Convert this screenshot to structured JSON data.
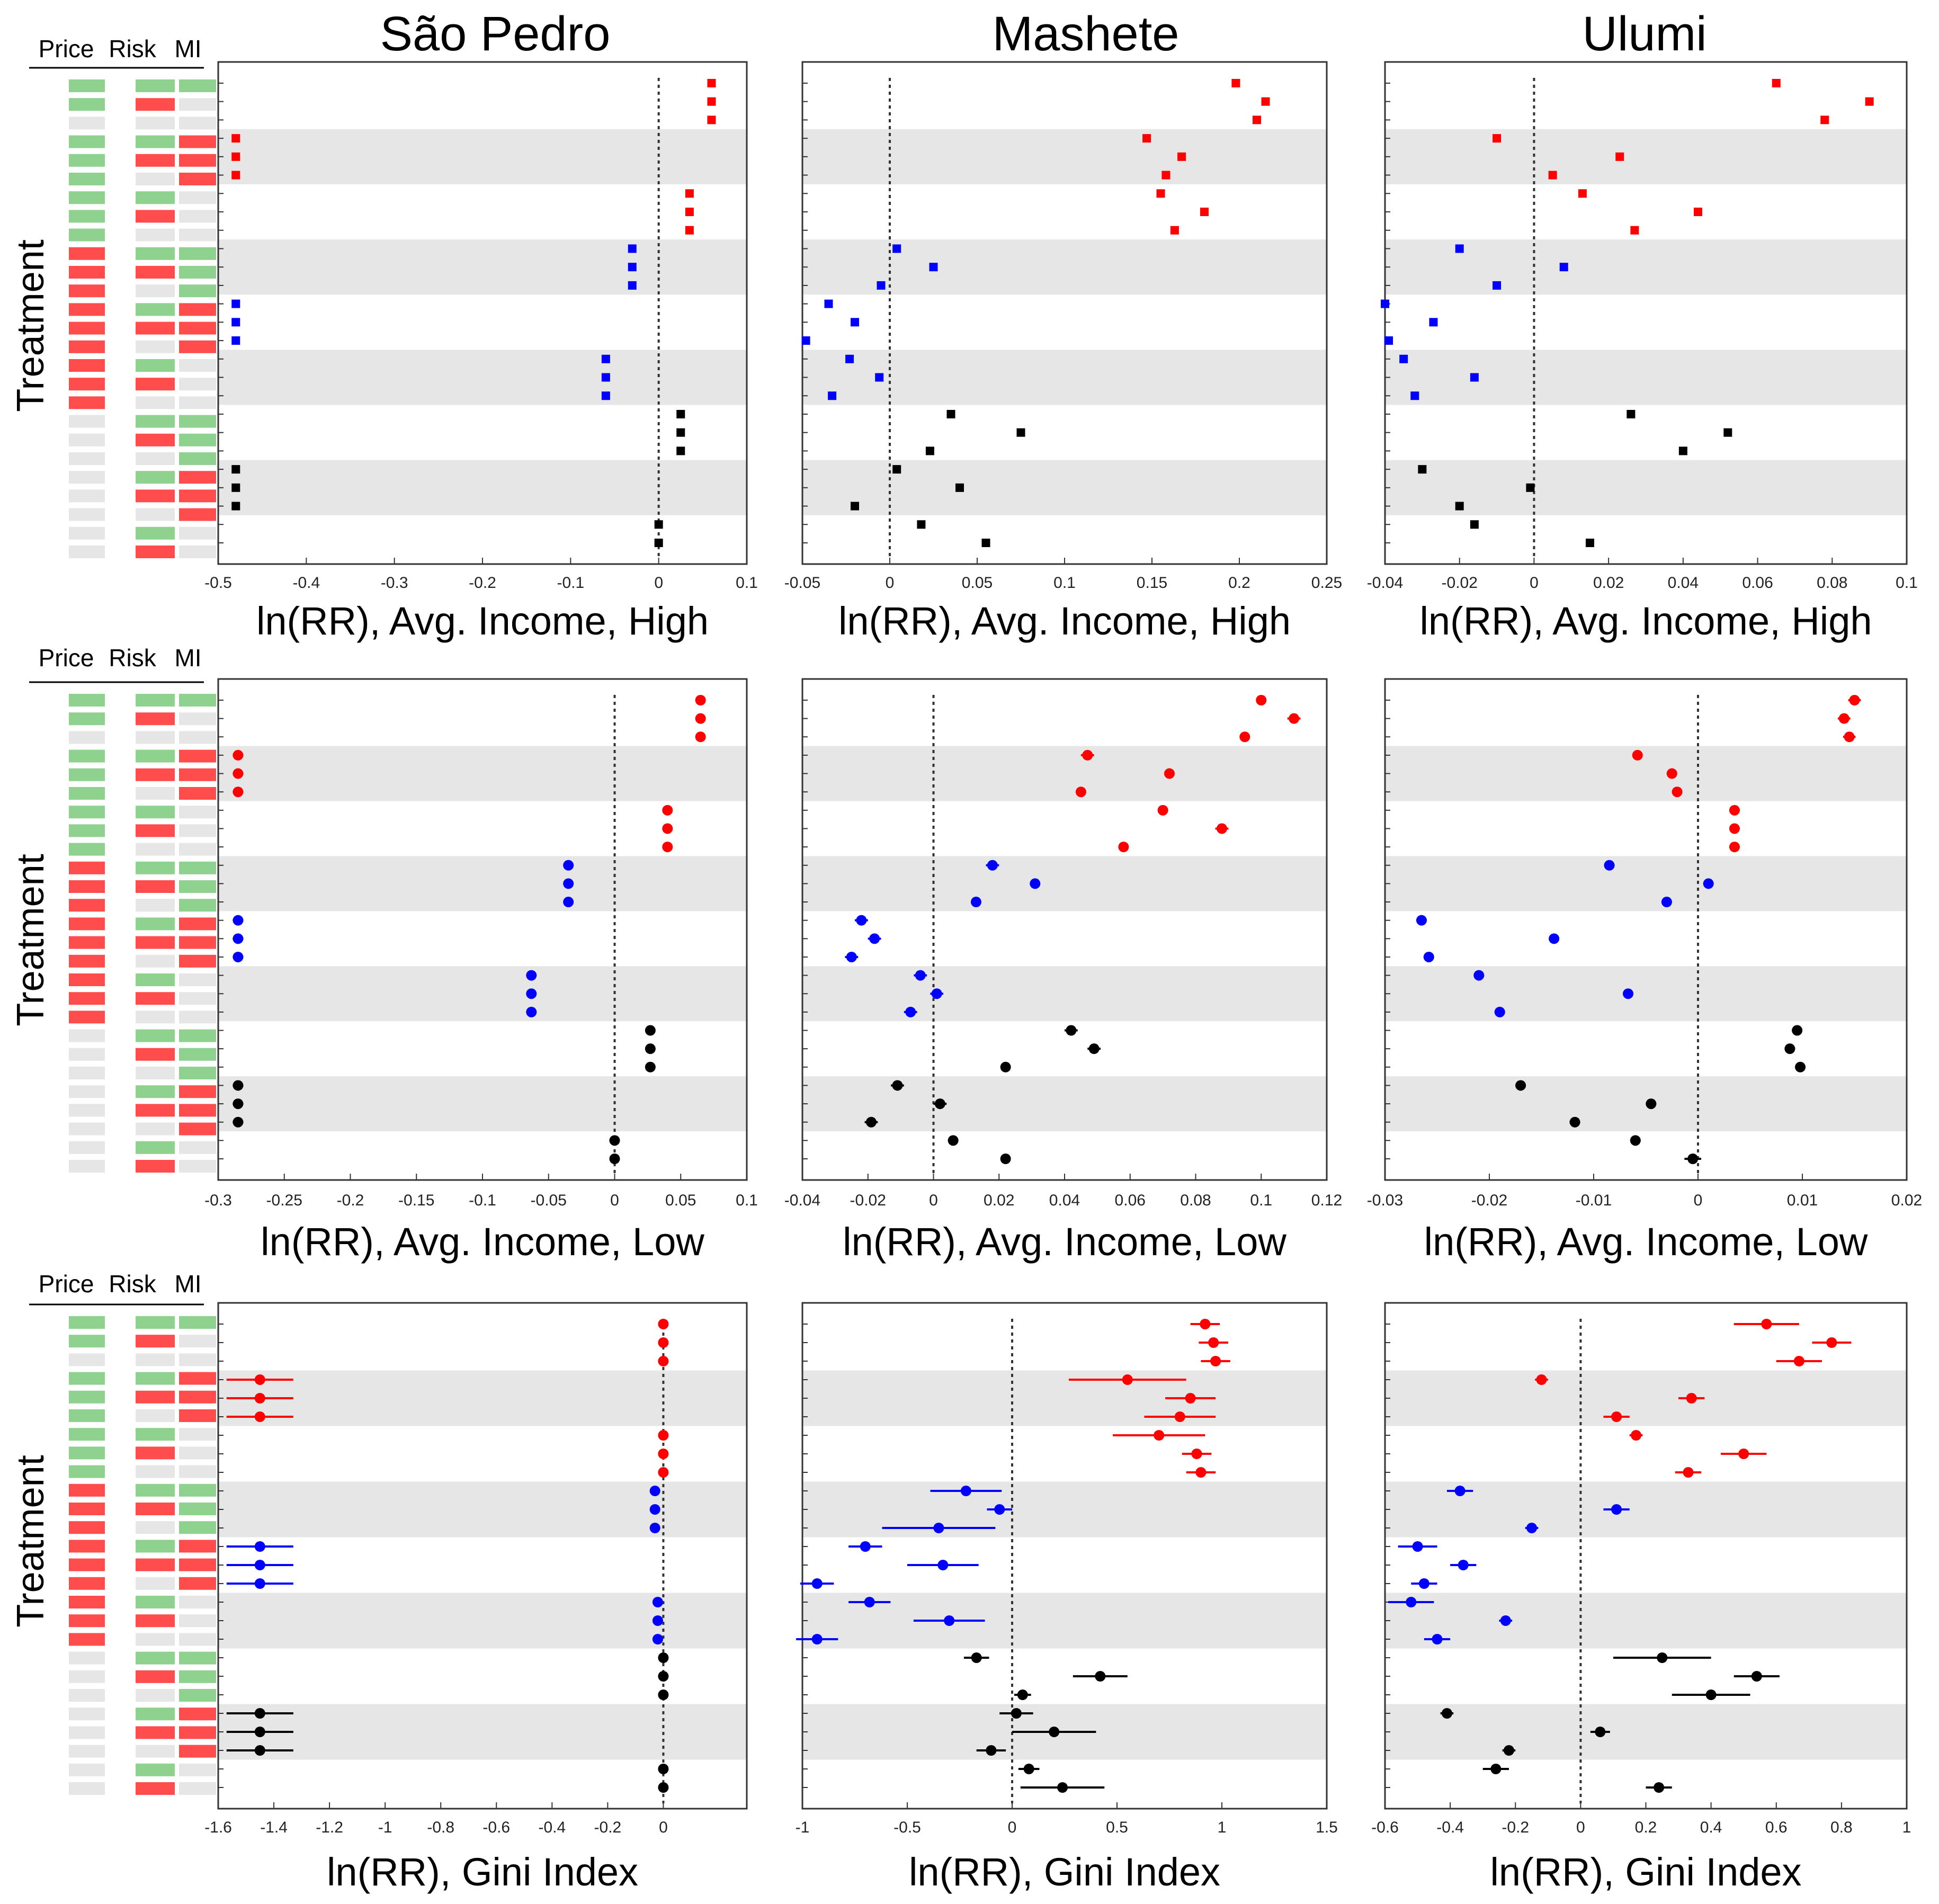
{
  "column_titles": [
    "São Pedro",
    "Mashete",
    "Ulumi"
  ],
  "treatment_label": "Treatment",
  "legend_header": [
    "Price",
    "Risk",
    "MI"
  ],
  "colors": {
    "price_risk_mi_group": "#ff0000",
    "price_risk_group": "#0000ff",
    "risk_mi_group": "#000000",
    "factor_on": "#8fd18f",
    "factor_red": "#ff4d4d",
    "factor_off": "#e6e6e6",
    "band": "#e6e6e6"
  },
  "treatment_matrix": [
    [
      "G",
      "G",
      "G"
    ],
    [
      "G",
      "R",
      "N"
    ],
    [
      "N",
      "N",
      "N"
    ],
    [
      "G",
      "G",
      "R"
    ],
    [
      "G",
      "R",
      "R"
    ],
    [
      "G",
      "N",
      "R"
    ],
    [
      "G",
      "G",
      "N"
    ],
    [
      "G",
      "R",
      "N"
    ],
    [
      "G",
      "N",
      "N"
    ],
    [
      "R",
      "G",
      "G"
    ],
    [
      "R",
      "R",
      "G"
    ],
    [
      "R",
      "N",
      "G"
    ],
    [
      "R",
      "G",
      "R"
    ],
    [
      "R",
      "R",
      "R"
    ],
    [
      "R",
      "N",
      "R"
    ],
    [
      "R",
      "G",
      "N"
    ],
    [
      "R",
      "R",
      "N"
    ],
    [
      "R",
      "N",
      "N"
    ],
    [
      "N",
      "G",
      "G"
    ],
    [
      "N",
      "R",
      "G"
    ],
    [
      "N",
      "N",
      "G"
    ],
    [
      "N",
      "G",
      "R"
    ],
    [
      "N",
      "R",
      "R"
    ],
    [
      "N",
      "N",
      "R"
    ],
    [
      "N",
      "G",
      "N"
    ],
    [
      "N",
      "R",
      "N"
    ]
  ],
  "panel_xlabels": [
    "ln(RR), Avg. Income, High",
    "ln(RR), Avg. Income, Low",
    "ln(RR), Gini Index"
  ],
  "chart_data": [
    {
      "type": "scatter",
      "row": 0,
      "col": 0,
      "xlabel": "ln(RR), Avg. Income, High",
      "xlim": [
        -0.5,
        0.1
      ],
      "xticks": [
        "-0.5",
        "-0.4",
        "-0.3",
        "-0.2",
        "-0.1",
        "0",
        "0.1"
      ],
      "values": [
        0.06,
        0.06,
        0.06,
        -0.48,
        -0.48,
        -0.48,
        0.035,
        0.035,
        0.035,
        -0.03,
        -0.03,
        -0.03,
        -0.48,
        -0.48,
        -0.48,
        -0.06,
        -0.06,
        -0.06,
        0.025,
        0.025,
        0.025,
        -0.48,
        -0.48,
        -0.48,
        0.0,
        0.0
      ],
      "err": [
        0,
        0,
        0,
        0,
        0,
        0,
        0,
        0,
        0,
        0,
        0,
        0,
        0,
        0,
        0,
        0,
        0,
        0,
        0,
        0,
        0,
        0,
        0,
        0,
        0,
        0
      ]
    },
    {
      "type": "scatter",
      "row": 0,
      "col": 1,
      "xlabel": "ln(RR), Avg. Income, High",
      "xlim": [
        -0.05,
        0.25
      ],
      "xticks": [
        "-0.05",
        "0",
        "0.05",
        "0.1",
        "0.15",
        "0.2",
        "0.25"
      ],
      "values": [
        0.198,
        0.215,
        0.21,
        0.147,
        0.167,
        0.158,
        0.155,
        0.18,
        0.163,
        0.004,
        0.025,
        -0.005,
        -0.035,
        -0.02,
        -0.048,
        -0.023,
        -0.006,
        -0.033,
        0.035,
        0.075,
        0.023,
        0.004,
        0.04,
        -0.02,
        0.018,
        0.055
      ],
      "err": [
        0,
        0,
        0,
        0,
        0,
        0,
        0,
        0,
        0,
        0,
        0,
        0,
        0,
        0,
        0,
        0,
        0,
        0,
        0,
        0,
        0,
        0,
        0,
        0,
        0,
        0
      ]
    },
    {
      "type": "scatter",
      "row": 0,
      "col": 2,
      "xlabel": "ln(RR), Avg. Income, High",
      "xlim": [
        -0.04,
        0.1
      ],
      "xticks": [
        "-0.04",
        "-0.02",
        "0",
        "0.02",
        "0.04",
        "0.06",
        "0.08",
        "0.1"
      ],
      "values": [
        0.065,
        0.09,
        0.078,
        -0.01,
        0.023,
        0.005,
        0.013,
        0.044,
        0.027,
        -0.02,
        0.008,
        -0.01,
        -0.04,
        -0.027,
        -0.039,
        -0.035,
        -0.016,
        -0.032,
        0.026,
        0.052,
        0.04,
        -0.03,
        -0.001,
        -0.02,
        -0.016,
        0.015
      ],
      "err": [
        0,
        0,
        0,
        0,
        0,
        0,
        0,
        0,
        0,
        0,
        0,
        0,
        0,
        0,
        0,
        0,
        0,
        0,
        0,
        0,
        0,
        0,
        0,
        0,
        0,
        0
      ]
    },
    {
      "type": "scatter",
      "row": 1,
      "col": 0,
      "xlabel": "ln(RR), Avg. Income, Low",
      "xlim": [
        -0.3,
        0.1
      ],
      "xticks": [
        "-0.3",
        "-0.25",
        "-0.2",
        "-0.15",
        "-0.1",
        "-0.05",
        "0",
        "0.05",
        "0.1"
      ],
      "values": [
        0.065,
        0.065,
        0.065,
        -0.285,
        -0.285,
        -0.285,
        0.04,
        0.04,
        0.04,
        -0.035,
        -0.035,
        -0.035,
        -0.285,
        -0.285,
        -0.285,
        -0.063,
        -0.063,
        -0.063,
        0.027,
        0.027,
        0.027,
        -0.285,
        -0.285,
        -0.285,
        0.0,
        0.0
      ],
      "err": [
        0,
        0,
        0,
        0.004,
        0.004,
        0.004,
        0,
        0,
        0,
        0,
        0,
        0,
        0.004,
        0.004,
        0.004,
        0,
        0,
        0,
        0,
        0,
        0,
        0.004,
        0.004,
        0.004,
        0,
        0
      ]
    },
    {
      "type": "scatter",
      "row": 1,
      "col": 1,
      "xlabel": "ln(RR), Avg. Income, Low",
      "xlim": [
        -0.04,
        0.12
      ],
      "xticks": [
        "-0.04",
        "-0.02",
        "0",
        "0.02",
        "0.04",
        "0.06",
        "0.08",
        "0.1",
        "0.12"
      ],
      "values": [
        0.1,
        0.11,
        0.095,
        0.047,
        0.072,
        0.045,
        0.07,
        0.088,
        0.058,
        0.018,
        0.031,
        0.013,
        -0.022,
        -0.018,
        -0.025,
        -0.004,
        0.001,
        -0.007,
        0.042,
        0.049,
        0.022,
        -0.011,
        0.002,
        -0.019,
        0.006,
        0.022
      ],
      "err": [
        0,
        0.002,
        0,
        0.002,
        0,
        0,
        0,
        0.002,
        0,
        0.002,
        0,
        0,
        0.002,
        0.002,
        0.002,
        0.002,
        0.002,
        0.002,
        0.002,
        0.002,
        0,
        0.002,
        0.002,
        0.002,
        0,
        0
      ]
    },
    {
      "type": "scatter",
      "row": 1,
      "col": 2,
      "xlabel": "ln(RR), Avg. Income, Low",
      "xlim": [
        -0.03,
        0.02
      ],
      "xticks": [
        "-0.03",
        "-0.02",
        "-0.01",
        "0",
        "0.01",
        "0.02"
      ],
      "values": [
        0.015,
        0.014,
        0.0145,
        -0.0058,
        -0.0025,
        -0.002,
        0.0035,
        0.0035,
        0.0035,
        -0.0085,
        0.001,
        -0.003,
        -0.0265,
        -0.0138,
        -0.0258,
        -0.021,
        -0.0067,
        -0.019,
        0.0095,
        0.0088,
        0.0098,
        -0.017,
        -0.0045,
        -0.0118,
        -0.006,
        -0.0005
      ],
      "err": [
        0.0006,
        0.0006,
        0.0006,
        0.0005,
        0.0005,
        0.0005,
        0.0005,
        0.0005,
        0.0005,
        0.0005,
        0.0005,
        0.0005,
        0.0005,
        0.0005,
        0.0005,
        0.0005,
        0.0005,
        0.0005,
        0.0005,
        0.0005,
        0.0005,
        0.0005,
        0.0005,
        0.0005,
        0.0005,
        0.0008
      ]
    },
    {
      "type": "scatter",
      "row": 2,
      "col": 0,
      "xlabel": "ln(RR), Gini Index",
      "xlim": [
        -1.6,
        0.3
      ],
      "xticks": [
        "-1.6",
        "-1.4",
        "-1.2",
        "-1",
        "-0.8",
        "-0.6",
        "-0.4",
        "-0.2",
        "0"
      ],
      "values": [
        0.0,
        0.0,
        0.0,
        -1.45,
        -1.45,
        -1.45,
        0.0,
        0.0,
        0.0,
        -0.03,
        -0.03,
        -0.03,
        -1.45,
        -1.45,
        -1.45,
        -0.02,
        -0.02,
        -0.02,
        0.0,
        0.0,
        0.0,
        -1.45,
        -1.45,
        -1.45,
        0.0,
        0.0
      ],
      "err": [
        0,
        0,
        0,
        0.12,
        0.12,
        0.12,
        0,
        0,
        0,
        0,
        0,
        0,
        0.12,
        0.12,
        0.12,
        0,
        0,
        0,
        0,
        0,
        0,
        0.12,
        0.12,
        0.12,
        0,
        0
      ]
    },
    {
      "type": "scatter",
      "row": 2,
      "col": 1,
      "xlabel": "ln(RR), Gini Index",
      "xlim": [
        -1,
        1.5
      ],
      "xticks": [
        "-1",
        "-0.5",
        "0",
        "0.5",
        "1",
        "1.5"
      ],
      "values": [
        0.92,
        0.96,
        0.97,
        0.55,
        0.85,
        0.8,
        0.7,
        0.88,
        0.9,
        -0.22,
        -0.06,
        -0.35,
        -0.7,
        -0.33,
        -0.93,
        -0.68,
        -0.3,
        -0.93,
        -0.17,
        0.42,
        0.05,
        0.02,
        0.2,
        -0.1,
        0.08,
        0.24
      ],
      "err": [
        0.07,
        0.07,
        0.07,
        0.28,
        0.12,
        0.17,
        0.22,
        0.07,
        0.07,
        0.17,
        0.06,
        0.27,
        0.08,
        0.17,
        0.08,
        0.1,
        0.17,
        0.1,
        0.06,
        0.13,
        0.04,
        0.08,
        0.2,
        0.07,
        0.05,
        0.2
      ]
    },
    {
      "type": "scatter",
      "row": 2,
      "col": 2,
      "xlabel": "ln(RR), Gini Index",
      "xlim": [
        -0.6,
        1
      ],
      "xticks": [
        "-0.6",
        "-0.4",
        "-0.2",
        "0",
        "0.2",
        "0.4",
        "0.6",
        "0.8",
        "1"
      ],
      "values": [
        0.57,
        0.77,
        0.67,
        -0.12,
        0.34,
        0.11,
        0.17,
        0.5,
        0.33,
        -0.37,
        0.11,
        -0.15,
        -0.5,
        -0.36,
        -0.48,
        -0.52,
        -0.23,
        -0.44,
        0.25,
        0.54,
        0.4,
        -0.41,
        0.06,
        -0.22,
        -0.26,
        0.24
      ],
      "err": [
        0.1,
        0.06,
        0.07,
        0.02,
        0.04,
        0.04,
        0.02,
        0.07,
        0.04,
        0.04,
        0.04,
        0.02,
        0.06,
        0.04,
        0.04,
        0.07,
        0.02,
        0.04,
        0.15,
        0.07,
        0.12,
        0.02,
        0.03,
        0.02,
        0.04,
        0.04
      ]
    }
  ]
}
